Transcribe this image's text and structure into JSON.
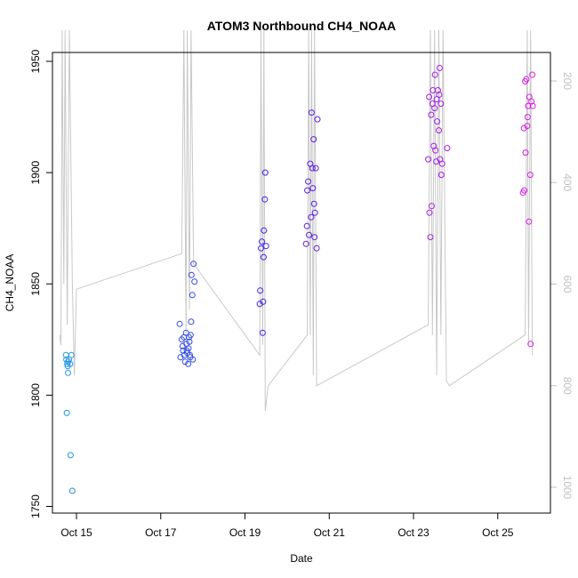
{
  "chart_data": {
    "type": "scatter",
    "title": "ATOM3 Northbound CH4_NOAA",
    "xlabel": "Date",
    "ylabel": "CH4_NOAA",
    "x_ticks": [
      {
        "value": 15,
        "label": "Oct 15"
      },
      {
        "value": 17,
        "label": "Oct 17"
      },
      {
        "value": 19,
        "label": "Oct 19"
      },
      {
        "value": 21,
        "label": "Oct 21"
      },
      {
        "value": 23,
        "label": "Oct 23"
      },
      {
        "value": 25,
        "label": "Oct 25"
      }
    ],
    "y_ticks": [
      1750,
      1800,
      1850,
      1900,
      1950
    ],
    "right_ticks": [
      200,
      400,
      600,
      800,
      1000
    ],
    "xlim": [
      14.43,
      26.25
    ],
    "ylim": [
      1747,
      1954
    ],
    "right_axis_color": "#c0c0c0",
    "altitude_line_color": "#c8c8c8",
    "point_color_start": "#1ea0e6",
    "point_color_mid": "#3a22e0",
    "point_color_end": "#e61ee6",
    "points": [
      [
        14.75,
        1818
      ],
      [
        14.76,
        1816
      ],
      [
        14.78,
        1814
      ],
      [
        14.79,
        1813
      ],
      [
        14.8,
        1815
      ],
      [
        14.77,
        1792
      ],
      [
        14.8,
        1810
      ],
      [
        14.82,
        1816
      ],
      [
        14.85,
        1814
      ],
      [
        14.88,
        1818
      ],
      [
        14.86,
        1773
      ],
      [
        14.9,
        1757
      ],
      [
        17.45,
        1832
      ],
      [
        17.47,
        1817
      ],
      [
        17.5,
        1825
      ],
      [
        17.52,
        1822
      ],
      [
        17.53,
        1820
      ],
      [
        17.55,
        1826
      ],
      [
        17.56,
        1818
      ],
      [
        17.58,
        1815
      ],
      [
        17.6,
        1828
      ],
      [
        17.61,
        1823
      ],
      [
        17.63,
        1819
      ],
      [
        17.65,
        1814
      ],
      [
        17.66,
        1821
      ],
      [
        17.68,
        1824
      ],
      [
        17.7,
        1817
      ],
      [
        17.71,
        1827
      ],
      [
        17.72,
        1833
      ],
      [
        17.73,
        1854
      ],
      [
        17.75,
        1845
      ],
      [
        17.76,
        1816
      ],
      [
        17.78,
        1859
      ],
      [
        17.8,
        1851
      ],
      [
        17.62,
        1820
      ],
      [
        17.67,
        1826
      ],
      [
        17.69,
        1818
      ],
      [
        19.35,
        1841
      ],
      [
        19.36,
        1847
      ],
      [
        19.38,
        1866
      ],
      [
        19.4,
        1869
      ],
      [
        19.42,
        1828
      ],
      [
        19.43,
        1842
      ],
      [
        19.44,
        1862
      ],
      [
        19.45,
        1874
      ],
      [
        19.47,
        1888
      ],
      [
        19.48,
        1900
      ],
      [
        19.5,
        1867
      ],
      [
        20.45,
        1868
      ],
      [
        20.47,
        1876
      ],
      [
        20.48,
        1892
      ],
      [
        20.5,
        1896
      ],
      [
        20.52,
        1872
      ],
      [
        20.55,
        1904
      ],
      [
        20.57,
        1880
      ],
      [
        20.58,
        1927
      ],
      [
        20.6,
        1902
      ],
      [
        20.61,
        1893
      ],
      [
        20.63,
        1915
      ],
      [
        20.64,
        1886
      ],
      [
        20.65,
        1871
      ],
      [
        20.66,
        1882
      ],
      [
        20.68,
        1902
      ],
      [
        20.7,
        1866
      ],
      [
        20.72,
        1924
      ],
      [
        23.35,
        1906
      ],
      [
        23.37,
        1934
      ],
      [
        23.38,
        1882
      ],
      [
        23.4,
        1871
      ],
      [
        23.42,
        1926
      ],
      [
        23.43,
        1885
      ],
      [
        23.45,
        1931
      ],
      [
        23.46,
        1937
      ],
      [
        23.48,
        1912
      ],
      [
        23.5,
        1929
      ],
      [
        23.51,
        1944
      ],
      [
        23.52,
        1910
      ],
      [
        23.54,
        1905
      ],
      [
        23.55,
        1933
      ],
      [
        23.56,
        1923
      ],
      [
        23.58,
        1937
      ],
      [
        23.6,
        1919
      ],
      [
        23.61,
        1935
      ],
      [
        23.62,
        1947
      ],
      [
        23.63,
        1906
      ],
      [
        23.65,
        1931
      ],
      [
        23.66,
        1899
      ],
      [
        23.68,
        1904
      ],
      [
        23.8,
        1911
      ],
      [
        25.6,
        1891
      ],
      [
        25.62,
        1920
      ],
      [
        25.63,
        1892
      ],
      [
        25.65,
        1941
      ],
      [
        25.66,
        1909
      ],
      [
        25.68,
        1942
      ],
      [
        25.7,
        1921
      ],
      [
        25.71,
        1925
      ],
      [
        25.72,
        1930
      ],
      [
        25.74,
        1878
      ],
      [
        25.75,
        1934
      ],
      [
        25.77,
        1899
      ],
      [
        25.78,
        1823
      ],
      [
        25.8,
        1932
      ],
      [
        25.82,
        1944
      ],
      [
        25.83,
        1930
      ]
    ],
    "altitude_series": [
      [
        14.6,
        700
      ],
      [
        14.63,
        720
      ],
      [
        14.66,
        100
      ],
      [
        14.7,
        600
      ],
      [
        14.73,
        100
      ],
      [
        14.78,
        680
      ],
      [
        14.83,
        100
      ],
      [
        14.9,
        590
      ],
      [
        14.95,
        780
      ],
      [
        15.0,
        610
      ],
      [
        17.5,
        540
      ],
      [
        17.55,
        100
      ],
      [
        17.6,
        700
      ],
      [
        17.63,
        100
      ],
      [
        17.68,
        650
      ],
      [
        17.72,
        100
      ],
      [
        17.78,
        560
      ],
      [
        19.35,
        740
      ],
      [
        19.38,
        100
      ],
      [
        19.42,
        720
      ],
      [
        19.45,
        100
      ],
      [
        19.48,
        850
      ],
      [
        19.55,
        800
      ],
      [
        20.48,
        700
      ],
      [
        20.51,
        100
      ],
      [
        20.55,
        700
      ],
      [
        20.58,
        100
      ],
      [
        20.62,
        780
      ],
      [
        20.65,
        100
      ],
      [
        20.7,
        800
      ],
      [
        23.35,
        680
      ],
      [
        23.4,
        100
      ],
      [
        23.45,
        700
      ],
      [
        23.5,
        100
      ],
      [
        23.55,
        780
      ],
      [
        23.6,
        100
      ],
      [
        23.65,
        700
      ],
      [
        23.7,
        100
      ],
      [
        23.78,
        790
      ],
      [
        23.85,
        800
      ],
      [
        25.65,
        700
      ],
      [
        25.7,
        100
      ],
      [
        25.73,
        720
      ],
      [
        25.78,
        100
      ],
      [
        25.82,
        740
      ]
    ]
  }
}
